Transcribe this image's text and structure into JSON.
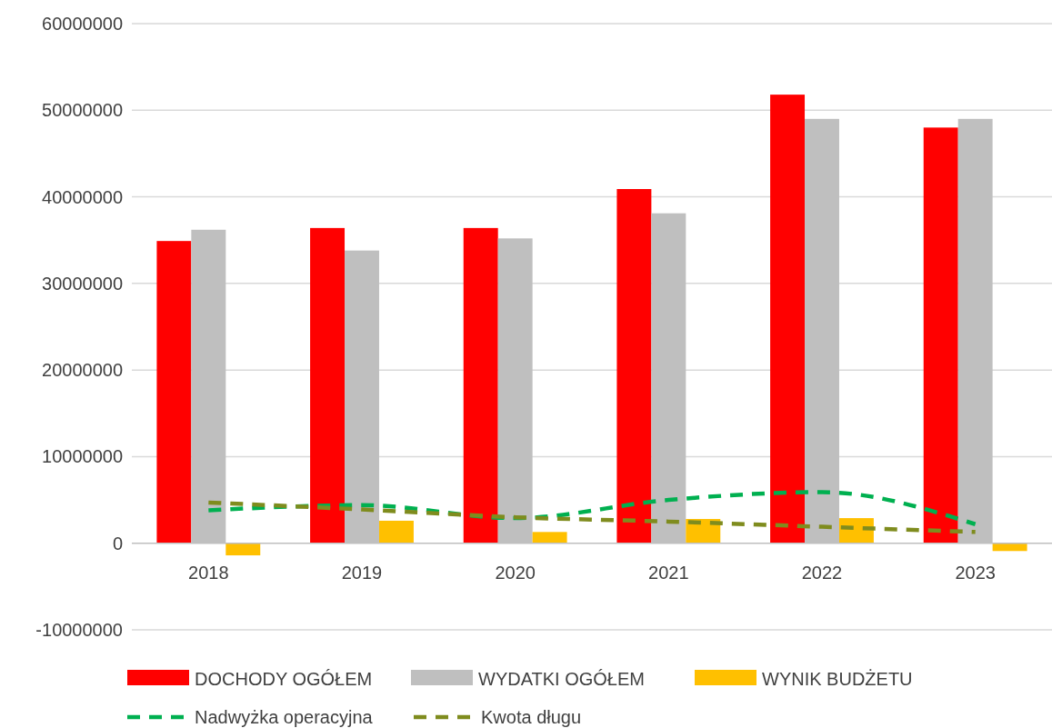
{
  "chart_data": {
    "type": "bar",
    "categories": [
      "2018",
      "2019",
      "2020",
      "2021",
      "2022",
      "2023"
    ],
    "series": [
      {
        "name": "DOCHODY OGÓŁEM",
        "color": "#ff0000",
        "values": [
          34900000,
          36400000,
          36400000,
          40900000,
          51800000,
          48000000
        ]
      },
      {
        "name": "WYDATKI OGÓŁEM",
        "color": "#bfbfbf",
        "values": [
          36200000,
          33800000,
          35200000,
          38100000,
          49000000,
          49000000
        ]
      },
      {
        "name": "WYNIK BUDŻETU",
        "color": "#ffc000",
        "values": [
          -1400000,
          2600000,
          1300000,
          2800000,
          2900000,
          -900000
        ]
      },
      {
        "name": "Nadwyżka operacyjna",
        "type": "line",
        "color": "#00b050",
        "line_style": "dashed",
        "values": [
          3800000,
          4400000,
          2900000,
          5000000,
          5900000,
          2200000
        ]
      },
      {
        "name": "Kwota długu",
        "type": "line",
        "color": "#7f8c1e",
        "line_style": "dashed",
        "values": [
          4700000,
          3900000,
          3000000,
          2500000,
          1900000,
          1300000
        ]
      }
    ],
    "ylim": [
      -10000000,
      60000000
    ],
    "yticks": [
      -10000000,
      0,
      10000000,
      20000000,
      30000000,
      40000000,
      50000000,
      60000000
    ],
    "grid": "y",
    "legend": "bottom"
  }
}
